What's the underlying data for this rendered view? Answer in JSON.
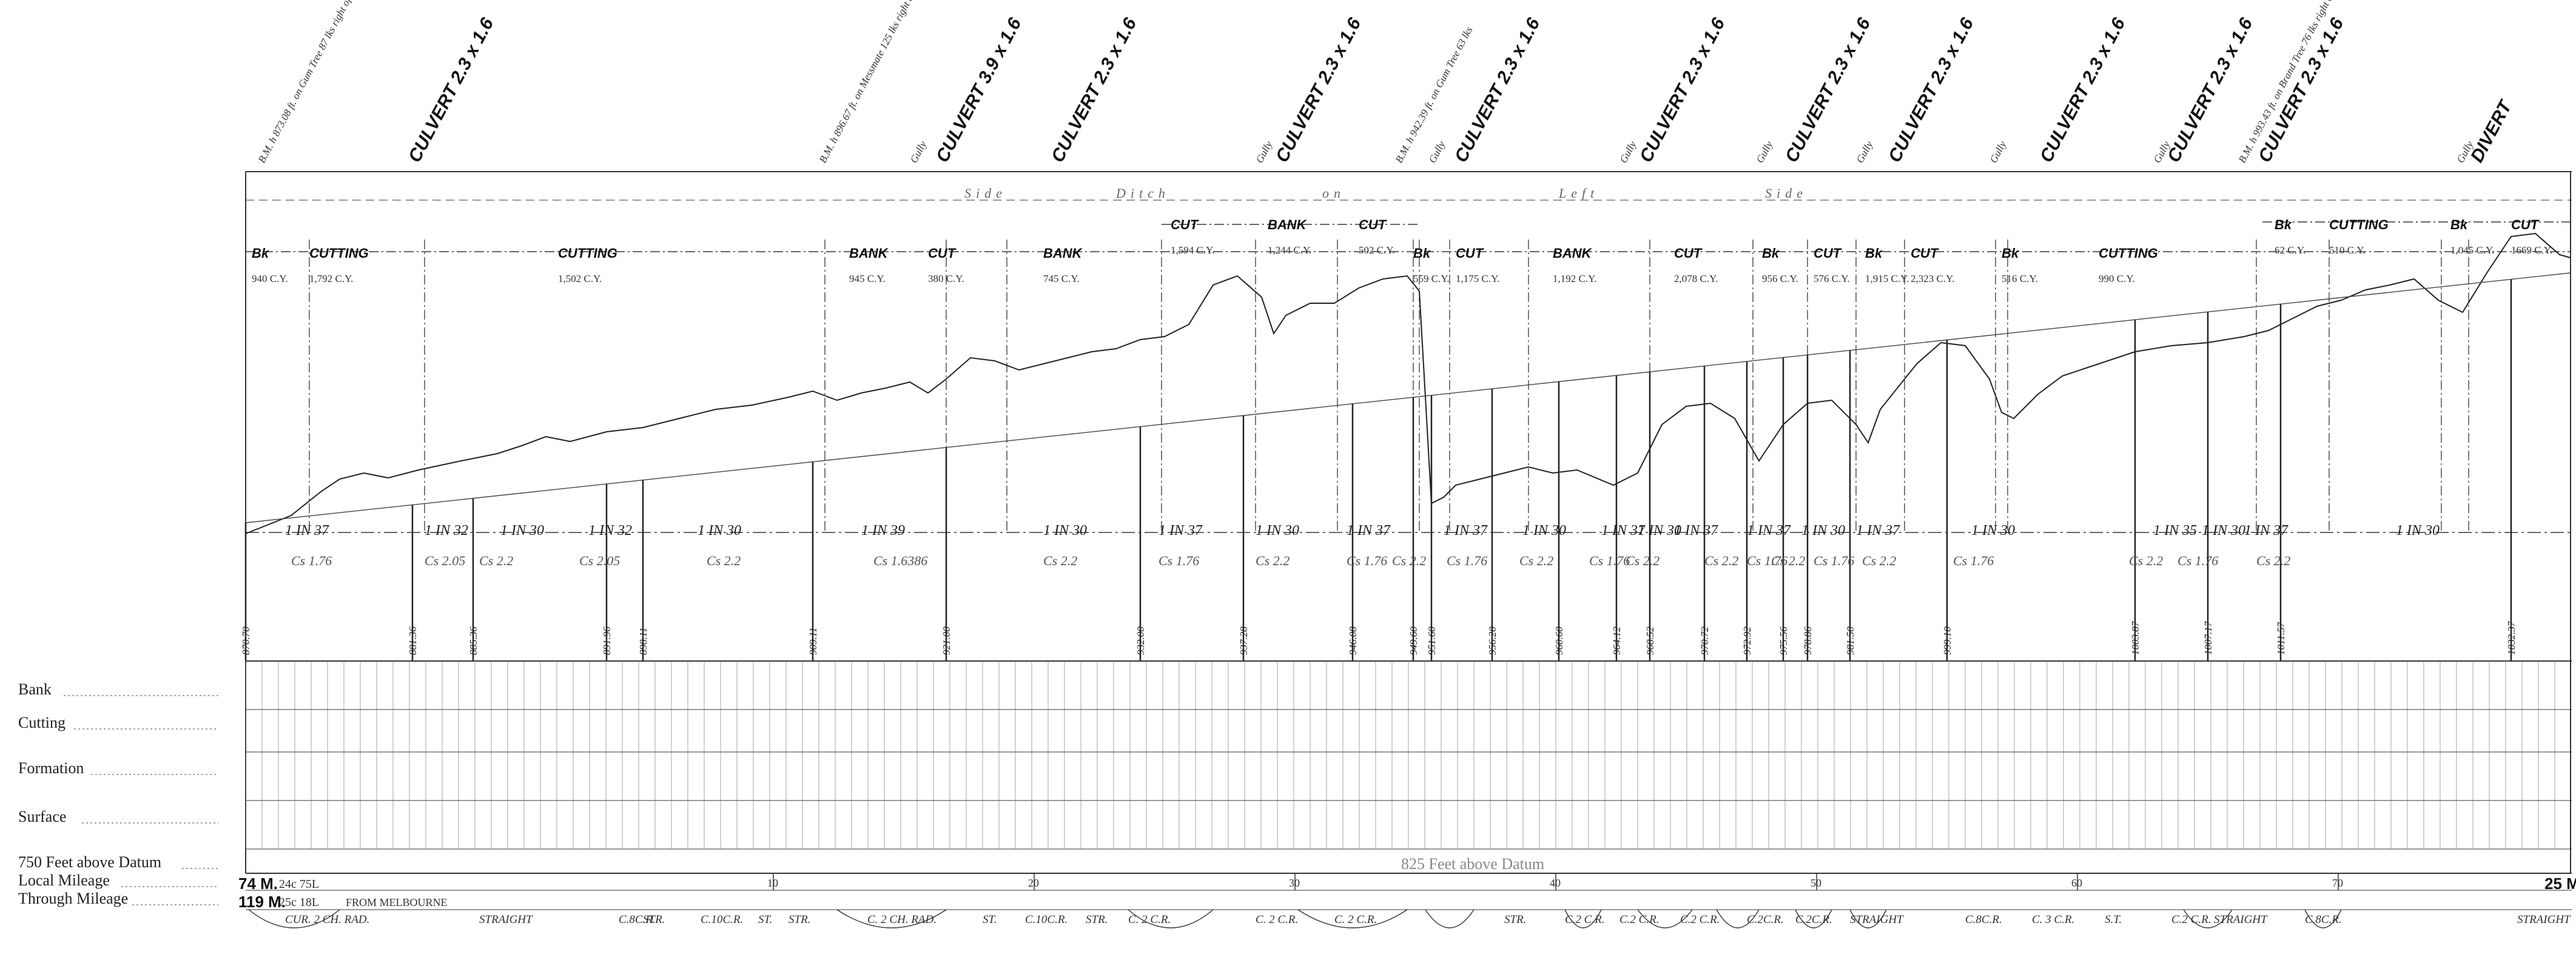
{
  "row_labels": {
    "bank": "Bank",
    "cutting": "Cutting",
    "formation": "Formation",
    "surface": "Surface",
    "datum": "750 Feet above Datum",
    "local_mileage": "Local Mileage",
    "through_mileage": "Through Mileage"
  },
  "datum_note": "825 Feet above Datum",
  "side_ditch": [
    "Side",
    "Ditch",
    "on",
    "Left",
    "Side"
  ],
  "mileage": {
    "start_local": "74 M.",
    "start_through": "119 M.",
    "start_chains": [
      "24c 75L",
      "25c 18L"
    ],
    "from_text": "FROM MELBOURNE",
    "end_label": "25 M."
  },
  "top_annotations": [
    {
      "kind": "bm",
      "text": "B.M. h 873.08 ft. on Gum Tree 87 lks right of 34m 3c 6L"
    },
    {
      "kind": "culvert",
      "text": "CULVERT 2.3 x 1.6"
    },
    {
      "kind": "bm",
      "text": "B.M. h 896.67 ft. on Messmate 125 lks right of 34m 8c 8L"
    },
    {
      "kind": "gully",
      "text": "Gully"
    },
    {
      "kind": "culvert",
      "text": "CULVERT 3.9 x 1.6"
    },
    {
      "kind": "culvert",
      "text": "CULVERT 2.3 x 1.6"
    },
    {
      "kind": "gully",
      "text": "Gully"
    },
    {
      "kind": "culvert",
      "text": "CULVERT 2.3 x 1.6"
    },
    {
      "kind": "bm",
      "text": "B.M. h 942.39 ft. on Gum Tree 63 lks"
    },
    {
      "kind": "gully",
      "text": "Gully"
    },
    {
      "kind": "culvert",
      "text": "CULVERT 2.3 x 1.6"
    },
    {
      "kind": "gully",
      "text": "Gully"
    },
    {
      "kind": "culvert",
      "text": "CULVERT 2.3 x 1.6"
    },
    {
      "kind": "gully",
      "text": "Gully"
    },
    {
      "kind": "culvert",
      "text": "CULVERT 2.3 x 1.6"
    },
    {
      "kind": "gully",
      "text": "Gully"
    },
    {
      "kind": "culvert",
      "text": "CULVERT 2.3 x 1.6"
    },
    {
      "kind": "gully",
      "text": "Gully"
    },
    {
      "kind": "culvert",
      "text": "CULVERT 2.3 x 1.6"
    },
    {
      "kind": "gully",
      "text": "Gully"
    },
    {
      "kind": "culvert",
      "text": "CULVERT 2.3 x 1.6"
    },
    {
      "kind": "bm",
      "text": "B.M. h 993.43 ft. on Brand Tree 76 lks right of 34m 46c 68L"
    },
    {
      "kind": "culvert",
      "text": "CULVERT 2.3 x 1.6"
    },
    {
      "kind": "gully",
      "text": "Gully"
    },
    {
      "kind": "culvert",
      "text": "DIVERT"
    }
  ],
  "earthworks_row1": [
    {
      "type": "Bk",
      "qty": "940 C.Y."
    },
    {
      "type": "CUTTING",
      "qty": "1,792 C.Y."
    },
    {
      "type": "CUTTING",
      "qty": "1,502 C.Y."
    },
    {
      "type": "BANK",
      "qty": "945 C.Y."
    },
    {
      "type": "CUT",
      "qty": "380 C.Y."
    },
    {
      "type": "BANK",
      "qty": "745 C.Y."
    },
    {
      "type": "Bk",
      "qty": "559 C.Y."
    },
    {
      "type": "CUT",
      "qty": "1,175 C.Y."
    },
    {
      "type": "BANK",
      "qty": "1,192 C.Y."
    },
    {
      "type": "CUT",
      "qty": "2,078 C.Y."
    },
    {
      "type": "Bk",
      "qty": "956 C.Y."
    },
    {
      "type": "CUT",
      "qty": "576 C.Y."
    },
    {
      "type": "Bk",
      "qty": "1,915 C.Y."
    },
    {
      "type": "CUT",
      "qty": "2,323 C.Y."
    },
    {
      "type": "Bk",
      "qty": "516 C.Y."
    },
    {
      "type": "CUTTING",
      "qty": "990 C.Y."
    }
  ],
  "earthworks_row0": [
    {
      "type": "CUT",
      "qty": "1,594 C.Y."
    },
    {
      "type": "BANK",
      "qty": "1,244 C.Y."
    },
    {
      "type": "CUT",
      "qty": "502 C.Y."
    },
    {
      "type": "Bk",
      "qty": "62 C.Y."
    },
    {
      "type": "CUTTING",
      "qty": "510 C.Y."
    },
    {
      "type": "Bk",
      "qty": "1,045 C.Y."
    },
    {
      "type": "CUT",
      "qty": "1669 C.Y."
    }
  ],
  "gradients": [
    "1 IN 37",
    "1 IN 32",
    "1 IN 30",
    "1 IN 32",
    "1 IN 30",
    "1 IN 39",
    "1 IN 30",
    "1 IN 37",
    "1 IN 30",
    "1 IN 37",
    "1 IN 37",
    "1 IN 30",
    "1 IN 37",
    "1 IN 30",
    "1 IN 37",
    "1 IN 37",
    "1 IN 30",
    "1 IN 37",
    "1 IN 30",
    "1 IN 35",
    "1 IN 30",
    "1 IN 37",
    "1 IN 30"
  ],
  "compensations": [
    "Cs 1.76",
    "Cs 2.05",
    "Cs 2.2",
    "Cs 2.05",
    "Cs 2.2",
    "Cs 1.6386",
    "Cs 2.2",
    "Cs 1.76",
    "Cs 2.2",
    "Cs 1.76",
    "Cs 2.2",
    "Cs 1.76",
    "Cs 2.2",
    "Cs 1.76",
    "Cs 2.2",
    "Cs 2.2",
    "Cs 1.76",
    "Cs 2.2",
    "Cs 1.76",
    "Cs 2.2",
    "Cs 1.76",
    "Cs 2.2",
    "Cs 1.76",
    "Cs 2.2"
  ],
  "formation_levels": [
    "870.70",
    "881.36",
    "885.36",
    "891.96",
    "898.11",
    "909.11",
    "921.00",
    "932.00",
    "937.28",
    "946.08",
    "949.60",
    "951.60",
    "956.20",
    "960.60",
    "964.12",
    "968.52",
    "970.72",
    "972.92",
    "975.56",
    "978.86",
    "981.50",
    "999.10",
    "1003.87",
    "1007.17",
    "1011.57",
    "1032.37"
  ],
  "chainage_ticks": [
    "10",
    "20",
    "30",
    "40",
    "50",
    "60",
    "70"
  ],
  "curves": [
    "CUR. 2 CH. RAD.",
    "STRAIGHT",
    "C.8C.R.",
    "STR.",
    "C.10C.R.",
    "ST.",
    "STR.",
    "C. 2 CH. RAD.",
    "ST.",
    "C.10C.R.",
    "STR.",
    "C. 2 C.R.",
    "C. 2 C.R.",
    "C. 2 C.R.",
    "STR.",
    "C.2 C.R.",
    "C.2 C.R.",
    "C.2 C.R.",
    "C.2C.R.",
    "C.2C.R.",
    "STRAIGHT",
    "C.8C.R.",
    "C. 3 C.R.",
    "S.T.",
    "C.2 C.R.",
    "STRAIGHT",
    "C.8C.R.",
    "STRAIGHT"
  ]
}
